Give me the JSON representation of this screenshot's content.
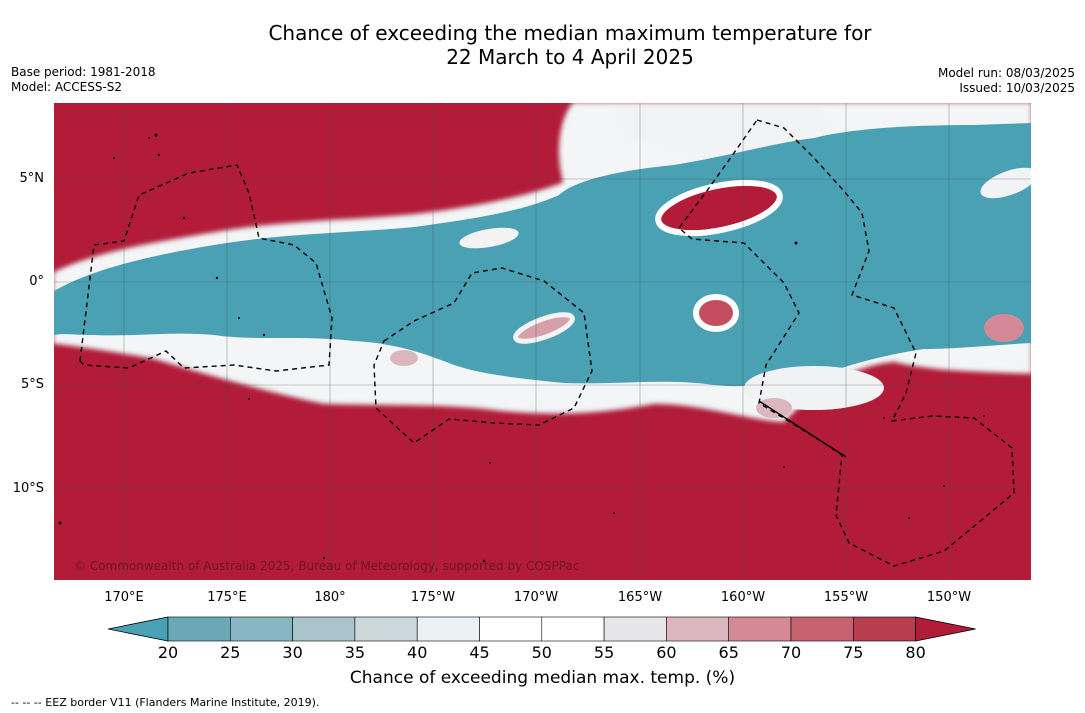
{
  "header": {
    "title_line1": "Chance of exceeding the median maximum temperature for",
    "title_line2": "22 March to 4 April 2025",
    "base_period": "Base period: 1981-2018",
    "model": "Model: ACCESS-S2",
    "model_run": "Model run: 08/03/2025",
    "issued": "Issued: 10/03/2025"
  },
  "map": {
    "lat_labels": [
      "5°N",
      "0°",
      "5°S",
      "10°S"
    ],
    "lon_labels": [
      "170°E",
      "175°E",
      "180°",
      "175°W",
      "170°W",
      "165°W",
      "160°W",
      "155°W",
      "150°W"
    ],
    "copyright": "© Commonwealth of Australia 2025, Bureau of Meteorology, supported by COSPPac",
    "colors": {
      "high": "#b21c38",
      "low": "#4aa1b3",
      "neutral": "#ffffff"
    }
  },
  "colorbar": {
    "ticks": [
      "20",
      "25",
      "30",
      "35",
      "40",
      "45",
      "50",
      "55",
      "60",
      "65",
      "70",
      "75",
      "80"
    ],
    "colors": [
      "#4aa1b3",
      "#6aa8b5",
      "#88b6c2",
      "#a9c5cb",
      "#ccd7da",
      "#ecf1f3",
      "#ffffff",
      "#ffffff",
      "#e7e7e9",
      "#dcb6bf",
      "#d38a96",
      "#c6616f",
      "#b73d4f",
      "#b21c38"
    ],
    "label": "Chance of exceeding median max. temp. (%)"
  },
  "footnote": "--  --  -- EEZ border V11 (Flanders Marine Institute, 2019)."
}
